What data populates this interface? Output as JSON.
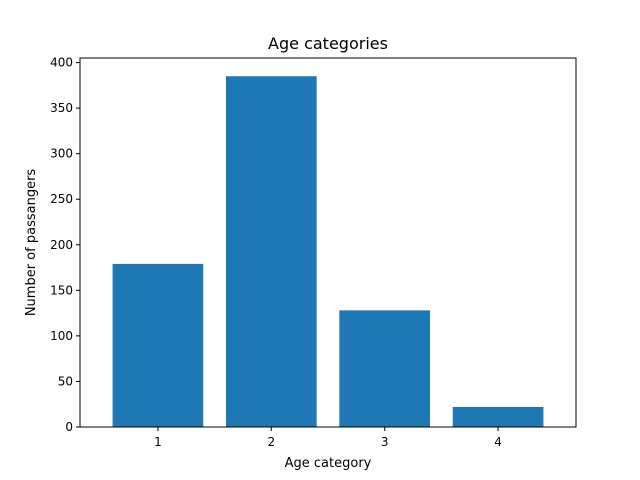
{
  "chart_data": {
    "type": "bar",
    "title": "Age categories",
    "xlabel": "Age category",
    "ylabel": "Number of passangers",
    "categories": [
      "1",
      "2",
      "3",
      "4"
    ],
    "values": [
      179,
      385,
      128,
      22
    ],
    "ylim": [
      0,
      405
    ],
    "yticks": [
      0,
      50,
      100,
      150,
      200,
      250,
      300,
      350,
      400
    ],
    "bar_color": "#1f77b4",
    "grid": false
  }
}
